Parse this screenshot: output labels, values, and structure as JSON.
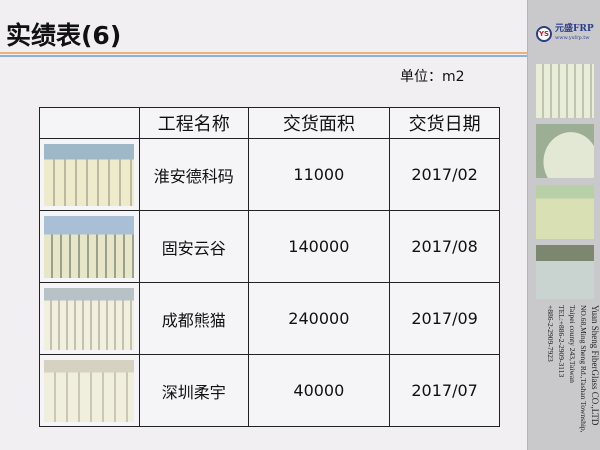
{
  "title": "实绩表(6)",
  "unit": "单位：m2",
  "table": {
    "headers": [
      "",
      "工程名称",
      "交货面积",
      "交货日期"
    ],
    "rows": [
      {
        "name": "淮安德科码",
        "area": "11000",
        "date": "2017/02"
      },
      {
        "name": "固安云谷",
        "area": "140000",
        "date": "2017/08"
      },
      {
        "name": "成都熊猫",
        "area": "240000",
        "date": "2017/09"
      },
      {
        "name": "深圳柔宇",
        "area": "40000",
        "date": "2017/07"
      }
    ]
  },
  "sidebar": {
    "logo_mark": "YS",
    "logo_name": "元盛FRP",
    "logo_url": "www.ysfrp.tw",
    "company": "Yuan Sheng FiberGlass CO.,LTD",
    "address1": "NO.68,Ming Sheng Rd.,Tashan Township,",
    "address2": "Taipei county 243,Taiwan",
    "tel": "TEL:+886-2-2909-3113",
    "fax": "+886-2-2909-7923"
  }
}
